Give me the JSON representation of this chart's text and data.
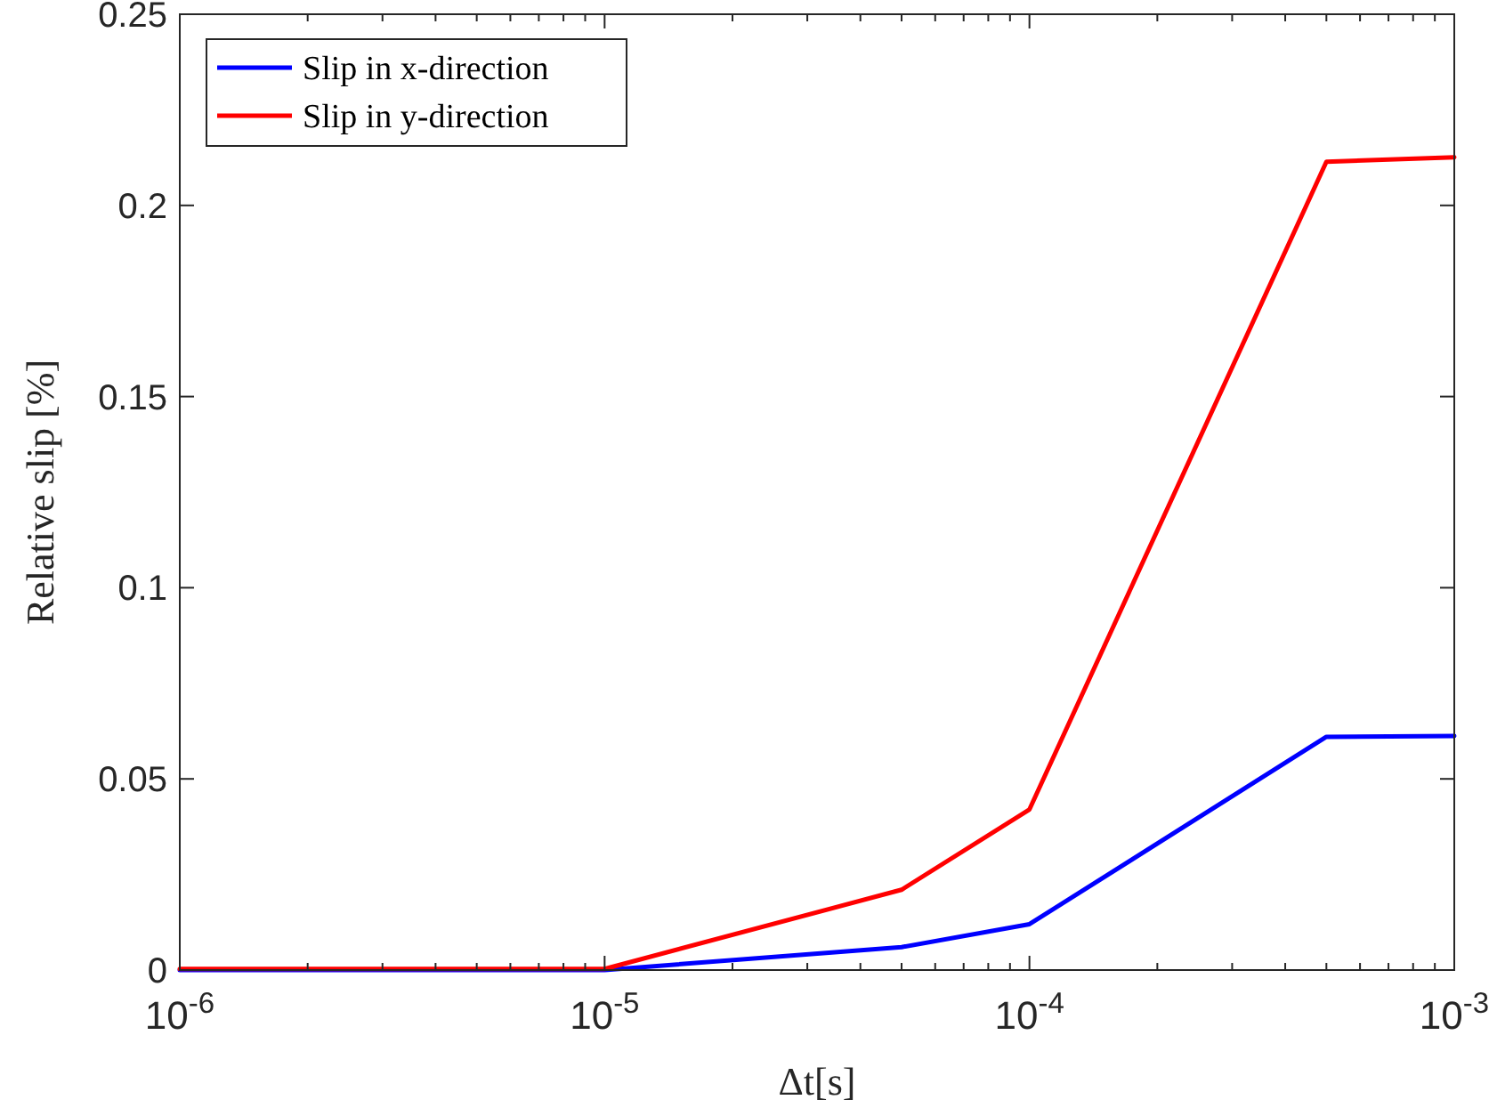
{
  "chart_data": {
    "type": "line",
    "xlabel": "Δt[s]",
    "ylabel": "Relative slip [%]",
    "log": "x",
    "x": [
      1e-06,
      1e-05,
      5e-05,
      0.0001,
      0.0005,
      0.001
    ],
    "series": [
      {
        "name": "Slip in x-direction",
        "color": "#0000ff",
        "values": [
          0,
          0,
          0.006,
          0.012,
          0.061,
          0.0612
        ]
      },
      {
        "name": "Slip in y-direction",
        "color": "#ff0000",
        "values": [
          0.0003,
          0.0003,
          0.021,
          0.042,
          0.2114,
          0.2126
        ]
      }
    ],
    "xlim": [
      1e-06,
      0.001
    ],
    "xticks": [
      {
        "value": 1e-06,
        "label": "10$^{-6}$"
      },
      {
        "value": 1e-05,
        "label": "10$^{-5}$"
      },
      {
        "value": 0.0001,
        "label": "10$^{-4}$"
      },
      {
        "value": 0.001,
        "label": "10$^{-3}$"
      }
    ],
    "ylim": [
      0,
      0.25
    ],
    "yticks": [
      0,
      0.05,
      0.1,
      0.15,
      0.2,
      0.25
    ],
    "grid": false,
    "legend": "top left",
    "line_style": "solid",
    "marker": "none"
  }
}
